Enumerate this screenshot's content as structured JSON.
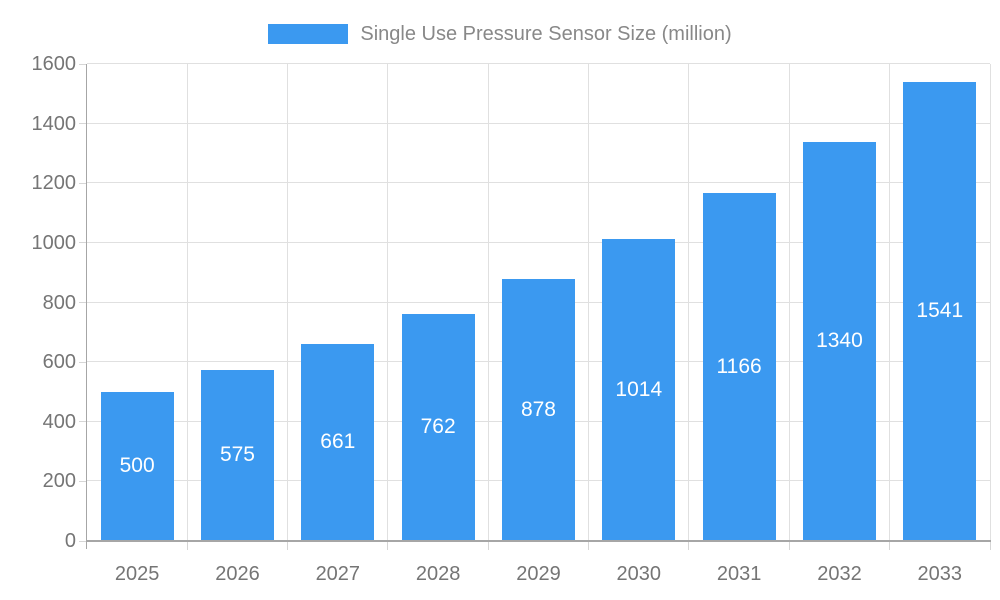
{
  "legend": {
    "label": "Single Use Pressure Sensor Size (million)"
  },
  "chart_data": {
    "type": "bar",
    "title": "Single Use Pressure Sensor Size (million)",
    "categories": [
      "2025",
      "2026",
      "2027",
      "2028",
      "2029",
      "2030",
      "2031",
      "2032",
      "2033"
    ],
    "series": [
      {
        "name": "Single Use Pressure Sensor Size (million)",
        "values": [
          500,
          575,
          661,
          762,
          878,
          1014,
          1166,
          1340,
          1541
        ],
        "color": "#3B99F0"
      }
    ],
    "xlabel": "",
    "ylabel": "",
    "ylim": [
      0,
      1600
    ],
    "yticks": [
      0,
      200,
      400,
      600,
      800,
      1000,
      1200,
      1400,
      1600
    ],
    "grid": true,
    "legend_position": "top-center",
    "value_label_position": "inside-center",
    "colors": {
      "bar": "#3B99F0",
      "value_label": "#ffffff",
      "axis_label": "#757575",
      "legend_text": "#888888",
      "gridline": "#e0e0e0",
      "axis_line": "#a6a6a6",
      "tick": "#d6d6d6",
      "background": "#ffffff"
    }
  }
}
